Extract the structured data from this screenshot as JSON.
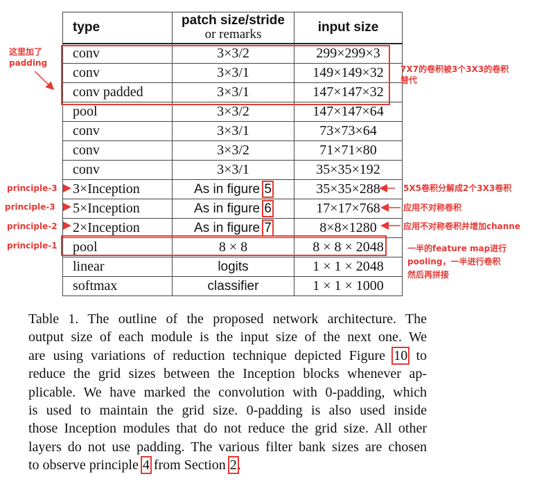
{
  "table": {
    "headers": {
      "type": "type",
      "patch_line1": "patch size/stride",
      "patch_line2": "or remarks",
      "input": "input size"
    },
    "rows": [
      {
        "type": "conv",
        "patch": "3×3/2",
        "input": "299×299×3"
      },
      {
        "type": "conv",
        "patch": "3×3/1",
        "input": "149×149×32"
      },
      {
        "type": "conv padded",
        "patch": "3×3/1",
        "input": "147×147×32"
      },
      {
        "type": "pool",
        "patch": "3×3/2",
        "input": "147×147×64"
      },
      {
        "type": "conv",
        "patch": "3×3/1",
        "input": "73×73×64"
      },
      {
        "type": "conv",
        "patch": "3×3/2",
        "input": "71×71×80"
      },
      {
        "type": "conv",
        "patch": "3×3/1",
        "input": "35×35×192"
      },
      {
        "type": "3×Inception",
        "patch_prefix": "As in figure",
        "patch_ref": "5",
        "input": "35×35×288"
      },
      {
        "type": "5×Inception",
        "patch_prefix": "As in figure",
        "patch_ref": "6",
        "input": "17×17×768"
      },
      {
        "type": "2×Inception",
        "patch_prefix": "As in figure",
        "patch_ref": "7",
        "input": "8×8×1280"
      },
      {
        "type": "pool",
        "patch": "8 × 8",
        "input": "8 × 8 × 2048"
      },
      {
        "type": "linear",
        "patch": "logits",
        "input": "1 × 1 × 2048"
      },
      {
        "type": "softmax",
        "patch": "classifier",
        "input": "1 × 1 × 1000"
      }
    ]
  },
  "annotations": {
    "padding_note": [
      "这里加了",
      "padding"
    ],
    "conv_note": [
      "7X7的卷积被3个3X3的卷积",
      "替代"
    ],
    "principle3a": "principle-3",
    "principle3b": "principle-3",
    "principle2": "principle-2",
    "principle1": "principle-1",
    "note_5x5": "5X5卷积分解成2个3X3卷积",
    "note_asym": "应用不对称卷积",
    "note_asym_channel": "应用不对称卷积并增加channe",
    "note_pool": [
      "一半的feature map进行",
      "pooling，一半进行卷积",
      "然后再拼接"
    ],
    "color": "#e53935"
  },
  "caption": {
    "lines": [
      "Table 1. The outline of the proposed network architecture.  The",
      "output size of each module is the input size of the next one. We",
      [
        "are using variations of reduction technique depicted Figure ",
        "10",
        " to"
      ],
      "reduce the grid sizes between the Inception blocks whenever ap-",
      "plicable. We have marked the convolution with 0-padding, which",
      "is used to maintain the grid size.  0-padding is also used inside",
      "those Inception modules that do not reduce the grid size. All other",
      "layers do not use padding. The various filter bank sizes are chosen",
      [
        "to observe principle ",
        "4",
        " from Section ",
        "2",
        "."
      ]
    ]
  }
}
